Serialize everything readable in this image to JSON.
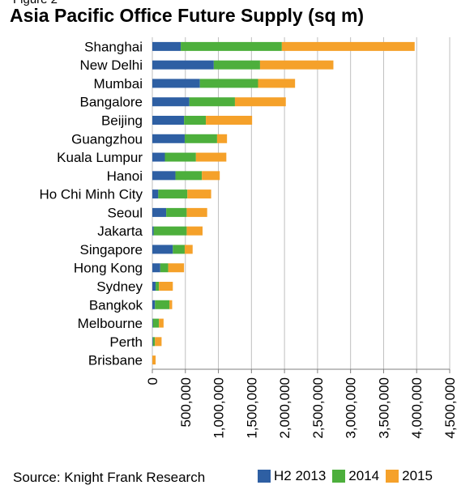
{
  "figure_label": "Figure 2",
  "source_text": "Source: Knight Frank Research",
  "chart_data": {
    "type": "bar",
    "orientation": "horizontal",
    "stacked": true,
    "title": "Asia Pacific Office Future Supply (sq m)",
    "categories": [
      "Shanghai",
      "New Delhi",
      "Mumbai",
      "Bangalore",
      "Beijing",
      "Guangzhou",
      "Kuala Lumpur",
      "Hanoi",
      "Ho Chi Minh City",
      "Seoul",
      "Jakarta",
      "Singapore",
      "Hong Kong",
      "Sydney",
      "Bangkok",
      "Melbourne",
      "Perth",
      "Brisbane"
    ],
    "series": [
      {
        "name": "H2 2013",
        "color": "#2e5fa3",
        "values": [
          430000,
          930000,
          720000,
          560000,
          480000,
          490000,
          190000,
          350000,
          90000,
          210000,
          20000,
          310000,
          120000,
          50000,
          40000,
          10000,
          10000,
          0
        ]
      },
      {
        "name": "2014",
        "color": "#4daf3c",
        "values": [
          1530000,
          700000,
          880000,
          690000,
          330000,
          490000,
          470000,
          400000,
          440000,
          310000,
          500000,
          180000,
          120000,
          50000,
          220000,
          90000,
          30000,
          0
        ]
      },
      {
        "name": "2015",
        "color": "#f5a12a",
        "values": [
          2010000,
          1110000,
          560000,
          770000,
          700000,
          150000,
          460000,
          270000,
          360000,
          310000,
          240000,
          120000,
          240000,
          210000,
          40000,
          70000,
          100000,
          50000
        ]
      }
    ],
    "xlim": [
      0,
      4500000
    ],
    "xticks": [
      "0",
      "500,000",
      "1,000,000",
      "1,500,000",
      "2,000,000",
      "2,500,000",
      "3,000,000",
      "3,500,000",
      "4,000,000",
      "4,500,000"
    ],
    "xtick_values": [
      0,
      500000,
      1000000,
      1500000,
      2000000,
      2500000,
      3000000,
      3500000,
      4000000,
      4500000
    ],
    "grid": "vertical",
    "legend_position": "bottom-right"
  }
}
